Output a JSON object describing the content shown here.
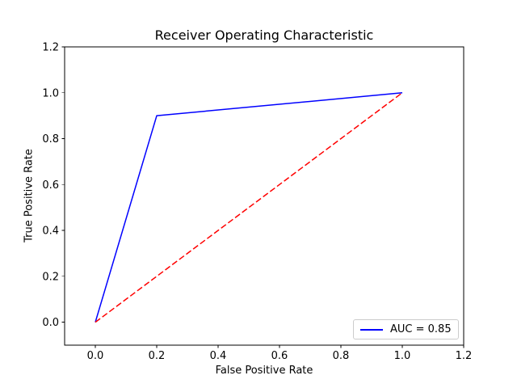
{
  "chart_data": {
    "type": "line",
    "title": "Receiver Operating Characteristic",
    "xlabel": "False Positive Rate",
    "ylabel": "True Positive Rate",
    "xlim": [
      -0.1,
      1.2
    ],
    "ylim": [
      -0.1,
      1.2
    ],
    "xticks": [
      0.0,
      0.2,
      0.4,
      0.6,
      0.8,
      1.0,
      1.2
    ],
    "yticks": [
      0.0,
      0.2,
      0.4,
      0.6,
      0.8,
      1.0,
      1.2
    ],
    "tick_label_format": "one-decimal",
    "grid": false,
    "background_color": "#ffffff",
    "spine_color": "#000000",
    "legend": {
      "position": "lower right",
      "entries": [
        "AUC = 0.85"
      ],
      "border_color": "#cccccc"
    },
    "series": [
      {
        "slug": "roc-curve-line",
        "color": "#0000ff",
        "style": "solid",
        "x": [
          0.0,
          0.2,
          1.0
        ],
        "y": [
          0.0,
          0.9,
          1.0
        ]
      },
      {
        "slug": "chance-diagonal-line",
        "color": "#ff0000",
        "style": "dashed",
        "x": [
          0.0,
          1.0
        ],
        "y": [
          0.0,
          1.0
        ]
      }
    ]
  }
}
